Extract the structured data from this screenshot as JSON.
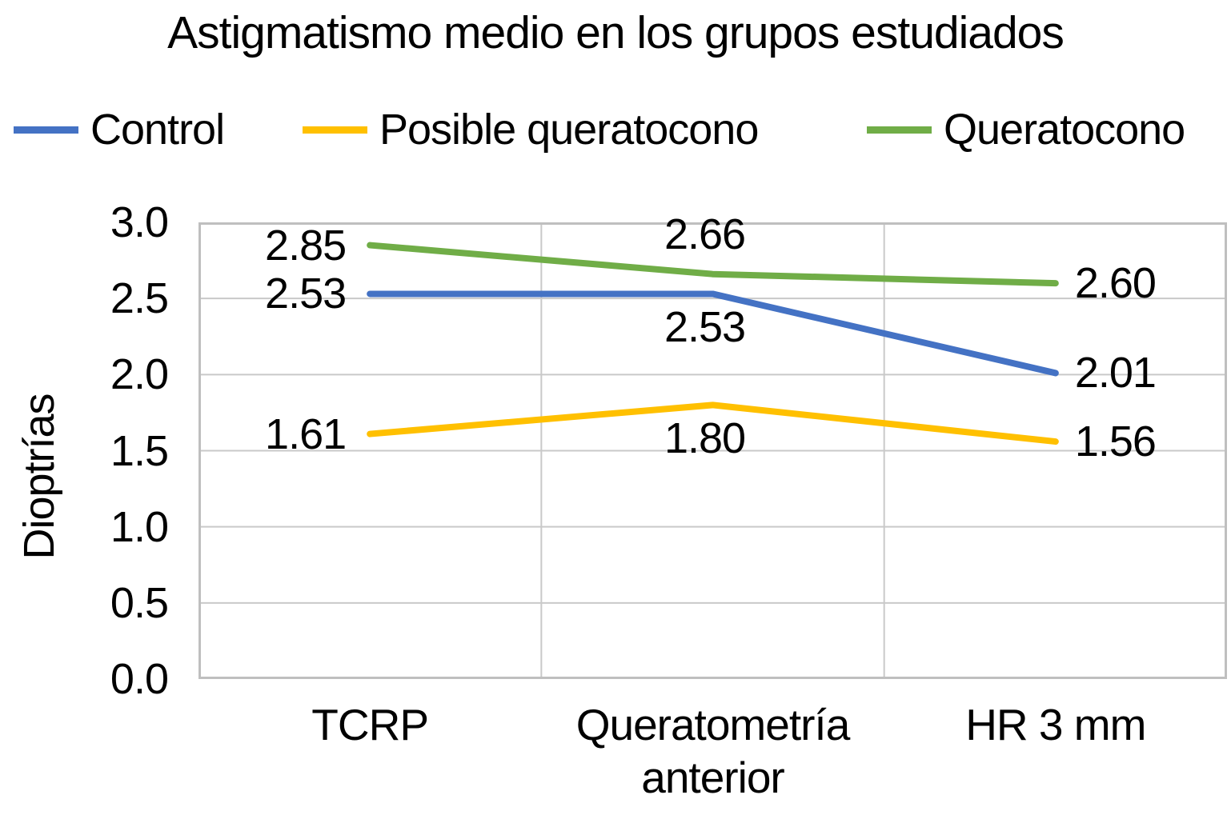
{
  "chart_data": {
    "type": "line",
    "title": "Astigmatismo medio en los grupos estudiados",
    "ylabel": "Dioptrías",
    "xlabel": "",
    "categories": [
      "TCRP",
      "Queratometría anterior",
      "HR 3 mm"
    ],
    "category_label_lines": [
      [
        "TCRP"
      ],
      [
        "Queratometría",
        "anterior"
      ],
      [
        "HR 3 mm"
      ]
    ],
    "y_ticks": [
      "3.0",
      "2.5",
      "2.0",
      "1.5",
      "1.0",
      "0.5",
      "0.0"
    ],
    "ylim": [
      0.0,
      3.0
    ],
    "grid": true,
    "legend_position": "top",
    "series": [
      {
        "name": "Control",
        "color": "#4472C4",
        "values": [
          2.53,
          2.53,
          2.01
        ],
        "labels": [
          "2.53",
          "2.53",
          "2.01"
        ],
        "label_pos": [
          "left",
          "below",
          "right"
        ]
      },
      {
        "name": "Posible queratocono",
        "color": "#FFC000",
        "values": [
          1.61,
          1.8,
          1.56
        ],
        "labels": [
          "1.61",
          "1.80",
          "1.56"
        ],
        "label_pos": [
          "left",
          "below",
          "right"
        ]
      },
      {
        "name": "Queratocono",
        "color": "#70AD47",
        "values": [
          2.85,
          2.66,
          2.6
        ],
        "labels": [
          "2.85",
          "2.66",
          "2.60"
        ],
        "label_pos": [
          "left",
          "above",
          "right"
        ]
      }
    ],
    "colors": {
      "text": "#000000",
      "gridline": "#C9C9C9",
      "plot_border": "#BFBFBF",
      "background": "#FFFFFF"
    }
  }
}
